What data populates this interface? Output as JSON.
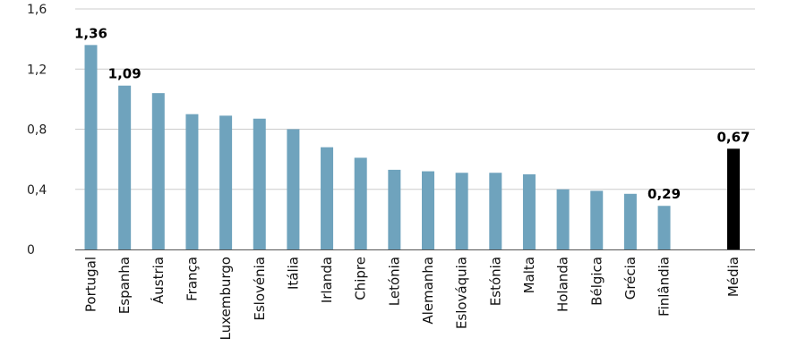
{
  "chart_data": {
    "type": "bar",
    "title": "",
    "xlabel": "",
    "ylabel": "",
    "ylim": [
      0,
      1.6
    ],
    "yticks": [
      "0",
      "0,4",
      "0,8",
      "1,2",
      "1,6"
    ],
    "ytick_values": [
      0,
      0.4,
      0.8,
      1.2,
      1.6
    ],
    "grid": true,
    "legend": "none",
    "categories": [
      "Portugal",
      "Espanha",
      "Áustria",
      "França",
      "Luxemburgo",
      "Eslovénia",
      "Itália",
      "Irlanda",
      "Chipre",
      "Letónia",
      "Alemanha",
      "Eslováquia",
      "Estónia",
      "Malta",
      "Holanda",
      "Bélgica",
      "Grécia",
      "Finlândia",
      "Média"
    ],
    "values": [
      1.36,
      1.09,
      1.04,
      0.9,
      0.89,
      0.87,
      0.8,
      0.68,
      0.61,
      0.53,
      0.52,
      0.51,
      0.51,
      0.5,
      0.4,
      0.39,
      0.37,
      0.29,
      0.67
    ],
    "value_labels": [
      {
        "index": 0,
        "text": "1,36"
      },
      {
        "index": 1,
        "text": "1,09"
      },
      {
        "index": 17,
        "text": "0,29"
      },
      {
        "index": 18,
        "text": "0,67"
      }
    ],
    "colors": {
      "bar": "#6fa3bd",
      "average_bar": "#000000",
      "grid": "#cccccc",
      "baseline": "#555555"
    }
  }
}
